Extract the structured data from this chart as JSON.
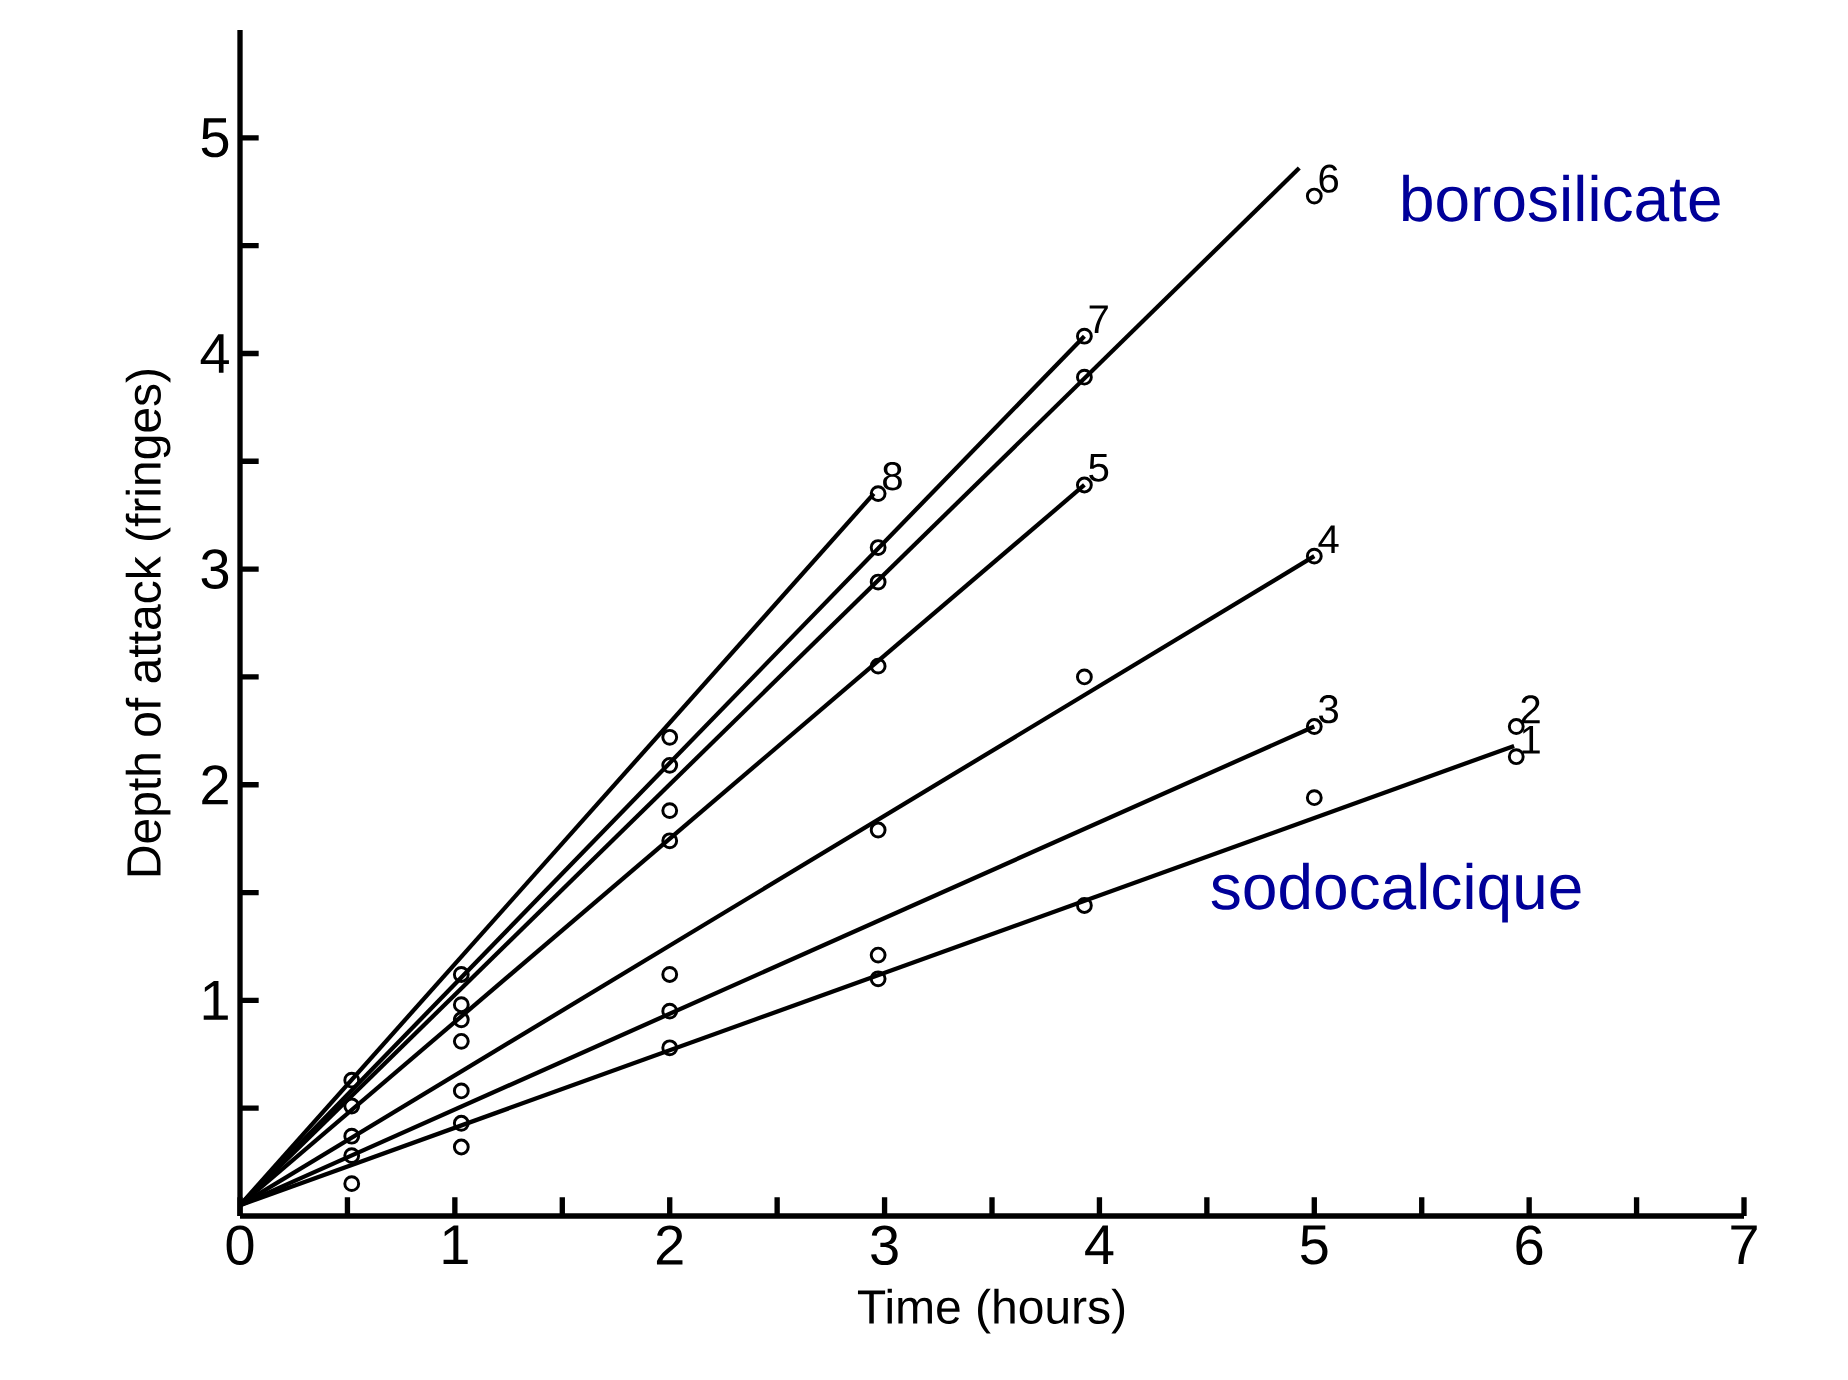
{
  "chart_data": {
    "type": "line",
    "xlabel": "Time (hours)",
    "ylabel": "Depth of attack (fringes)",
    "xlim": [
      0,
      7
    ],
    "ylim": [
      0,
      5.5
    ],
    "xticks": [
      0,
      {
        "value": 0.5,
        "label": null
      },
      1,
      {
        "value": 1.5,
        "label": null
      },
      2,
      {
        "value": 2.5,
        "label": null
      },
      3,
      {
        "value": 3.5,
        "label": null
      },
      4,
      {
        "value": 4.5,
        "label": null
      },
      5,
      {
        "value": 5.5,
        "label": null
      },
      6,
      {
        "value": 6.5,
        "label": null
      },
      7
    ],
    "yticks": [
      {
        "value": 0.5,
        "label": null
      },
      1,
      {
        "value": 1.5,
        "label": null
      },
      2,
      {
        "value": 2.5,
        "label": null
      },
      3,
      {
        "value": 3.5,
        "label": null
      },
      4,
      {
        "value": 4.5,
        "label": null
      },
      5
    ],
    "grid": false,
    "series": [
      {
        "type": "scatter",
        "marker": "circle",
        "color": "#000000",
        "x": [
          0.52,
          0.52,
          0.52,
          0.52,
          0.52,
          1.03,
          1.03,
          1.03,
          1.03,
          1.03,
          1.03,
          1.03,
          2.0,
          2.0,
          2.0,
          2.0,
          2.0,
          2.0,
          2.0,
          2.97,
          2.97,
          2.97,
          2.97,
          2.97,
          2.97,
          2.97,
          3.93,
          3.93,
          3.93,
          3.93,
          3.93,
          5.0,
          5.0,
          5.0,
          5.0,
          5.94,
          5.94
        ],
        "values": [
          0.63,
          0.51,
          0.37,
          0.28,
          0.15,
          1.12,
          0.98,
          0.91,
          0.81,
          0.58,
          0.43,
          0.32,
          2.22,
          2.09,
          1.88,
          1.74,
          1.12,
          0.95,
          0.78,
          3.35,
          3.1,
          2.94,
          2.55,
          1.79,
          1.21,
          1.1,
          4.08,
          3.89,
          3.39,
          2.5,
          1.44,
          4.73,
          3.06,
          2.27,
          1.94,
          2.27,
          2.13
        ]
      },
      {
        "color": "#000000",
        "x": [
          0,
          2.95
        ],
        "values": [
          0.05,
          3.35
        ]
      },
      {
        "color": "#000000",
        "x": [
          0,
          3.93
        ],
        "values": [
          0.05,
          4.08
        ]
      },
      {
        "color": "#000000",
        "x": [
          0,
          4.93
        ],
        "values": [
          0.05,
          4.86
        ]
      },
      {
        "color": "#000000",
        "x": [
          0,
          3.93
        ],
        "values": [
          0.05,
          3.39
        ]
      },
      {
        "color": "#000000",
        "x": [
          0,
          5.0
        ],
        "values": [
          0.05,
          3.06
        ]
      },
      {
        "color": "#000000",
        "x": [
          0,
          5.0
        ],
        "values": [
          0.05,
          2.27
        ]
      },
      {
        "color": "#000000",
        "x": [
          0,
          5.93
        ],
        "values": [
          0.05,
          2.18
        ]
      }
    ],
    "annotations": [
      {
        "text": "8",
        "x": 2.97,
        "y": 3.35
      },
      {
        "text": "7",
        "x": 3.93,
        "y": 4.08
      },
      {
        "text": "6",
        "x": 5.0,
        "y": 4.73
      },
      {
        "text": "5",
        "x": 3.93,
        "y": 3.39
      },
      {
        "text": "4",
        "x": 5.0,
        "y": 3.06
      },
      {
        "text": "3",
        "x": 5.0,
        "y": 2.27
      },
      {
        "text": "2",
        "x": 5.94,
        "y": 2.27
      },
      {
        "text": "1",
        "x": 5.94,
        "y": 2.13
      },
      "borosilicate",
      "sodocalcique"
    ]
  }
}
